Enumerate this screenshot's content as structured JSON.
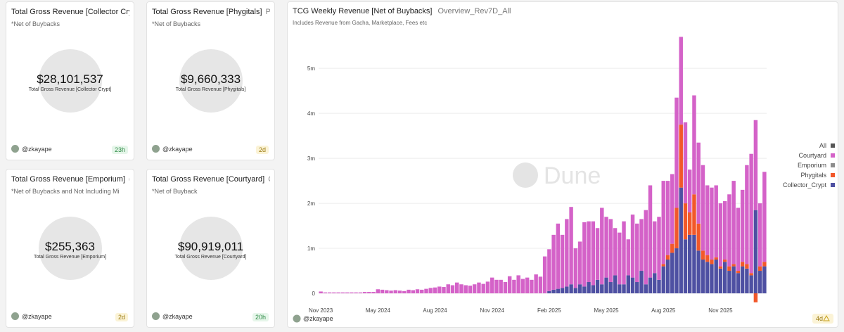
{
  "counters": [
    {
      "title": "Total Gross Revenue [Collector Cry…",
      "query": null,
      "subtitle": "*Net of Buybacks",
      "value": "$28,101,537",
      "label": "Total Gross Revenue [Collector Crypt]",
      "author": "@zkayape",
      "age": "23h",
      "status": "ok"
    },
    {
      "title": "Total Gross Revenue [Phygitals]",
      "query": "Ph…",
      "subtitle": "*Net of Buybacks",
      "value": "$9,660,333",
      "label": "Total Gross Revenue [Phygitals]",
      "author": "@zkayape",
      "age": "2d",
      "status": "warn"
    },
    {
      "title": "Total Gross Revenue [Emporium]",
      "query": "e…",
      "subtitle": "*Net of Buybacks and Not Including Mi",
      "value": "$255,363",
      "label": "Total Gross Revenue [Emporium]",
      "author": "@zkayape",
      "age": "2d",
      "status": "warn"
    },
    {
      "title": "Total Gross Revenue [Courtyard]",
      "query": "C…",
      "subtitle": "*Net of Buyback",
      "value": "$90,919,011",
      "label": "Total Gross Revenue [Courtyard]",
      "author": "@zkayape",
      "age": "20h",
      "status": "ok"
    }
  ],
  "chart_card": {
    "query": "Overview_Rev7D_All",
    "watermark": "Dune",
    "author": "@zkayape",
    "age": "4d"
  },
  "chart_data": {
    "type": "stacked_bar",
    "title": "TCG Weekly Revenue [Net of Buybacks]",
    "subtitle": "Includes Revenue from Gacha, Marketplace, Fees etc",
    "categories": [
      "Nov 2023",
      null,
      null,
      null,
      null,
      null,
      null,
      null,
      null,
      null,
      null,
      null,
      null,
      "May 2024",
      null,
      null,
      null,
      null,
      null,
      null,
      null,
      null,
      null,
      null,
      null,
      null,
      "Aug 2024",
      null,
      null,
      null,
      null,
      null,
      null,
      null,
      null,
      null,
      null,
      null,
      null,
      "Nov 2024",
      null,
      null,
      null,
      null,
      null,
      null,
      null,
      null,
      null,
      null,
      null,
      null,
      "Feb 2025",
      null,
      null,
      null,
      null,
      null,
      null,
      null,
      null,
      null,
      null,
      null,
      null,
      "May 2025",
      null,
      null,
      null,
      null,
      null,
      null,
      null,
      null,
      null,
      null,
      null,
      null,
      "Aug 2025",
      null,
      null,
      null,
      null,
      null,
      null,
      null,
      null,
      null,
      null,
      null,
      null,
      "Nov 2025",
      null,
      null,
      null,
      null,
      null,
      null,
      null,
      null,
      null,
      null
    ],
    "ylim": [
      -0.25,
      5.8
    ],
    "yticks": [
      0,
      {
        "value": 1,
        "label": "1m"
      },
      {
        "value": 2,
        "label": "2m"
      },
      {
        "value": 3,
        "label": "3m"
      },
      {
        "value": 4,
        "label": "4m"
      },
      {
        "value": 5,
        "label": "5m"
      }
    ],
    "grid": true,
    "legend": "right",
    "series": [
      {
        "name": "All",
        "color": "#555555",
        "values": [
          null,
          null,
          null,
          null,
          null,
          null,
          null,
          null,
          null,
          null,
          null,
          null,
          null,
          null,
          null,
          null,
          null,
          null,
          null,
          null,
          null,
          null,
          null,
          null,
          null,
          null,
          null,
          null,
          null,
          null,
          null,
          null,
          null,
          null,
          null,
          null,
          null,
          null,
          null,
          null,
          null,
          null,
          null,
          null,
          null,
          null,
          null,
          null,
          null,
          null,
          null,
          null,
          null,
          null,
          null,
          null,
          null,
          null,
          null,
          null,
          null,
          null,
          null,
          null,
          null,
          null,
          null,
          null,
          null,
          null,
          null,
          null,
          null,
          null,
          null,
          null,
          null,
          null,
          null,
          null,
          null,
          null,
          null,
          null,
          null,
          null,
          null,
          null,
          null,
          null,
          null,
          null,
          null,
          null,
          null,
          null,
          null,
          null,
          null,
          null,
          null,
          null
        ]
      },
      {
        "name": "Courtyard",
        "color": "#d462c8",
        "values": [
          0.04,
          0.02,
          0.02,
          0.02,
          0.02,
          0.02,
          0.02,
          0.02,
          0.02,
          0.02,
          0.03,
          0.03,
          0.03,
          0.09,
          0.08,
          0.07,
          0.06,
          0.07,
          0.06,
          0.05,
          0.08,
          0.07,
          0.09,
          0.08,
          0.1,
          0.12,
          0.13,
          0.15,
          0.14,
          0.2,
          0.18,
          0.24,
          0.2,
          0.18,
          0.17,
          0.2,
          0.24,
          0.21,
          0.26,
          0.35,
          0.3,
          0.3,
          0.25,
          0.38,
          0.3,
          0.4,
          0.32,
          0.35,
          0.3,
          0.42,
          0.37,
          0.82,
          0.93,
          1.22,
          1.45,
          1.18,
          1.5,
          1.72,
          0.88,
          0.95,
          1.43,
          1.35,
          1.42,
          1.15,
          1.7,
          1.35,
          1.4,
          1.05,
          1.15,
          1.4,
          0.8,
          1.4,
          1.3,
          1.15,
          1.65,
          2.05,
          1.15,
          1.4,
          1.85,
          1.65,
          1.55,
          2.45,
          1.95,
          1.8,
          0.95,
          2.2,
          1.8,
          1.9,
          1.55,
          1.6,
          1.6,
          1.4,
          1.3,
          1.6,
          1.85,
          1.4,
          1.6,
          2.2,
          2.65,
          2.0,
          1.4,
          2.0
        ]
      },
      {
        "name": "Emporium",
        "color": "#8c8c8c",
        "values": [
          0,
          0,
          0,
          0,
          0,
          0,
          0,
          0,
          0,
          0,
          0,
          0,
          0,
          0,
          0,
          0,
          0,
          0,
          0,
          0,
          0,
          0,
          0,
          0,
          0,
          0,
          0,
          0,
          0,
          0,
          0,
          0,
          0,
          0,
          0,
          0,
          0,
          0,
          0,
          0,
          0,
          0,
          0,
          0,
          0,
          0,
          0,
          0,
          0,
          0,
          0,
          0,
          0,
          0,
          0,
          0,
          0,
          0,
          0,
          0,
          0,
          0,
          0,
          0,
          0,
          0,
          0,
          0,
          0,
          0,
          0,
          0,
          0,
          0,
          0,
          0,
          0,
          0,
          0,
          0,
          0,
          0,
          0,
          0,
          0,
          0,
          0,
          0,
          0,
          0,
          0,
          0,
          0,
          0,
          0,
          0,
          0,
          0,
          0,
          0,
          0,
          0
        ]
      },
      {
        "name": "Phygitals",
        "color": "#f2582a",
        "values": [
          0,
          0,
          0,
          0,
          0,
          0,
          0,
          0,
          0,
          0,
          0,
          0,
          0,
          0,
          0,
          0,
          0,
          0,
          0,
          0,
          0,
          0,
          0,
          0,
          0,
          0,
          0,
          0,
          0,
          0,
          0,
          0,
          0,
          0,
          0,
          0,
          0,
          0,
          0,
          0,
          0,
          0,
          0,
          0,
          0,
          0,
          0,
          0,
          0,
          0,
          0,
          0,
          0,
          0,
          0,
          0,
          0,
          0,
          0,
          0,
          0,
          0,
          0,
          0,
          0,
          0,
          0,
          0,
          0,
          0,
          0,
          0,
          0,
          0,
          0,
          0,
          0,
          0,
          0.05,
          0.1,
          0.2,
          0.9,
          1.4,
          0.8,
          0.5,
          0.9,
          0.6,
          0.2,
          0.15,
          0.1,
          0.05,
          0.05,
          0.05,
          0.1,
          0.05,
          0.05,
          0.1,
          0.1,
          0.05,
          -0.2,
          0.1,
          0.1
        ]
      },
      {
        "name": "Collector_Crypt",
        "color": "#4e50a2",
        "values": [
          0,
          0,
          0,
          0,
          0,
          0,
          0,
          0,
          0,
          0,
          0,
          0,
          0,
          0,
          0,
          0,
          0,
          0,
          0,
          0,
          0,
          0,
          0,
          0,
          0,
          0,
          0,
          0,
          0,
          0,
          0,
          0,
          0,
          0,
          0,
          0,
          0,
          0,
          0,
          0,
          0,
          0,
          0,
          0,
          0,
          0,
          0,
          0,
          0,
          0,
          0,
          0,
          0.05,
          0.08,
          0.1,
          0.12,
          0.15,
          0.2,
          0.12,
          0.2,
          0.15,
          0.25,
          0.18,
          0.3,
          0.2,
          0.35,
          0.25,
          0.4,
          0.2,
          0.2,
          0.4,
          0.35,
          0.25,
          0.5,
          0.2,
          0.35,
          0.45,
          0.3,
          0.6,
          0.75,
          0.9,
          1.0,
          2.35,
          1.2,
          1.3,
          1.3,
          0.95,
          0.75,
          0.7,
          0.65,
          0.75,
          0.55,
          0.7,
          0.5,
          0.6,
          0.45,
          0.6,
          0.55,
          0.4,
          1.85,
          0.5,
          0.6
        ]
      }
    ]
  }
}
